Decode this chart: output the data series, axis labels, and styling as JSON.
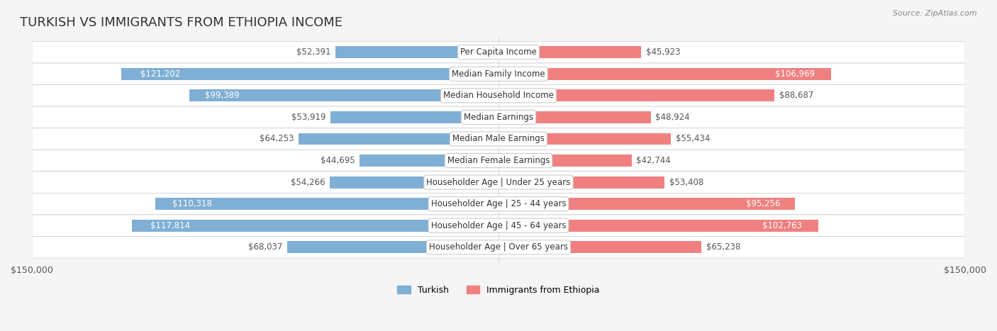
{
  "title": "TURKISH VS IMMIGRANTS FROM ETHIOPIA INCOME",
  "source": "Source: ZipAtlas.com",
  "categories": [
    "Per Capita Income",
    "Median Family Income",
    "Median Household Income",
    "Median Earnings",
    "Median Male Earnings",
    "Median Female Earnings",
    "Householder Age | Under 25 years",
    "Householder Age | 25 - 44 years",
    "Householder Age | 45 - 64 years",
    "Householder Age | Over 65 years"
  ],
  "turkish_values": [
    52391,
    121202,
    99389,
    53919,
    64253,
    44695,
    54266,
    110318,
    117814,
    68037
  ],
  "ethiopia_values": [
    45923,
    106969,
    88687,
    48924,
    55434,
    42744,
    53408,
    95256,
    102763,
    65238
  ],
  "turkish_color": "#7fafd4",
  "turkish_color_dark": "#5b9bc7",
  "ethiopia_color": "#f08080",
  "ethiopia_color_dark": "#e85b7a",
  "turkish_label": "Turkish",
  "ethiopia_label": "Immigrants from Ethiopia",
  "x_max": 150000,
  "x_min": -150000,
  "turkish_label_threshold": 90000,
  "ethiopia_label_threshold": 90000,
  "background_color": "#f5f5f5",
  "row_bg_color": "#ffffff",
  "bar_height": 0.55,
  "label_fontsize": 8.5,
  "value_fontsize": 8.5,
  "title_fontsize": 13
}
